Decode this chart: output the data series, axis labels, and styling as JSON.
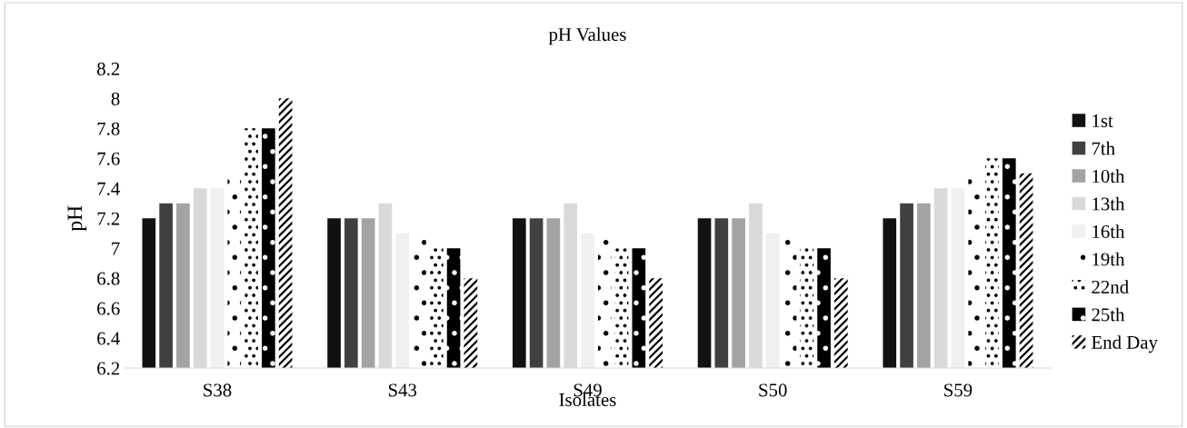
{
  "chart_data": {
    "type": "bar",
    "title": "pH Values",
    "xlabel": "Isolates",
    "ylabel": "pH",
    "categories": [
      "S38",
      "S43",
      "S49",
      "S50",
      "S59"
    ],
    "series": [
      {
        "name": "1st",
        "color": "#111111",
        "values": [
          7.2,
          7.2,
          7.2,
          7.2,
          7.2
        ]
      },
      {
        "name": "7th",
        "color": "#404040",
        "values": [
          7.3,
          7.2,
          7.2,
          7.2,
          7.3
        ]
      },
      {
        "name": "10th",
        "color": "#a3a3a3",
        "values": [
          7.3,
          7.2,
          7.2,
          7.2,
          7.3
        ]
      },
      {
        "name": "13th",
        "color": "#d9d9d9",
        "values": [
          7.4,
          7.3,
          7.3,
          7.3,
          7.4
        ]
      },
      {
        "name": "16th",
        "color": "#f0f0f0",
        "values": [
          7.4,
          7.1,
          7.1,
          7.1,
          7.4
        ]
      },
      {
        "name": "19th",
        "color": "#ffffff",
        "values": [
          7.5,
          7.1,
          7.1,
          7.1,
          7.5
        ]
      },
      {
        "name": "22nd",
        "color": "#ffffff",
        "values": [
          7.8,
          7.0,
          7.0,
          7.0,
          7.6
        ]
      },
      {
        "name": "25th",
        "color": "#000000",
        "values": [
          7.8,
          7.0,
          7.0,
          7.0,
          7.6
        ]
      },
      {
        "name": "End Day",
        "color": "#ffffff",
        "values": [
          8.0,
          6.8,
          6.8,
          6.8,
          7.5
        ]
      }
    ],
    "ylim": [
      6.2,
      8.2
    ],
    "yticks": [
      6.2,
      6.4,
      6.6,
      6.8,
      7,
      7.2,
      7.4,
      7.6,
      7.8,
      8,
      8.2
    ],
    "grid": false,
    "legend": "right"
  }
}
